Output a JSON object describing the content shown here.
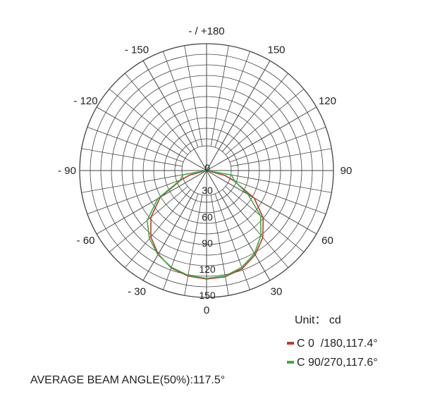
{
  "chart_data": {
    "type": "polar",
    "angle_labels": [
      {
        "text": "- / +180",
        "angle": 0
      },
      {
        "text": "150",
        "angle": 30
      },
      {
        "text": "120",
        "angle": 60
      },
      {
        "text": "90",
        "angle": 90
      },
      {
        "text": "60",
        "angle": 120
      },
      {
        "text": "30",
        "angle": 150
      },
      {
        "text": "0",
        "angle": 180
      },
      {
        "text": "- 30",
        "angle": 210
      },
      {
        "text": "- 60",
        "angle": 240
      },
      {
        "text": "- 90",
        "angle": 270
      },
      {
        "text": "- 120",
        "angle": 300
      },
      {
        "text": "- 150",
        "angle": 330
      }
    ],
    "radial_labels": [
      "0",
      "30",
      "60",
      "90",
      "120",
      "150"
    ],
    "unit_label": "Unit： cd",
    "series": [
      {
        "name": "C 0  /180,117.4°",
        "color": "#c0392b",
        "points": [
          {
            "angle": -75,
            "value": 27
          },
          {
            "angle": -70,
            "value": 40
          },
          {
            "angle": -60,
            "value": 78
          },
          {
            "angle": -50,
            "value": 105
          },
          {
            "angle": -40,
            "value": 124
          },
          {
            "angle": -30,
            "value": 138
          },
          {
            "angle": -20,
            "value": 148
          },
          {
            "angle": -10,
            "value": 153
          },
          {
            "angle": 0,
            "value": 154
          },
          {
            "angle": 10,
            "value": 152
          },
          {
            "angle": 20,
            "value": 147
          },
          {
            "angle": 30,
            "value": 137
          },
          {
            "angle": 40,
            "value": 123
          },
          {
            "angle": 50,
            "value": 103
          },
          {
            "angle": 60,
            "value": 76
          },
          {
            "angle": 70,
            "value": 38
          },
          {
            "angle": 75,
            "value": 25
          }
        ]
      },
      {
        "name": "C 90/270,117.6°",
        "color": "#33b044",
        "points": [
          {
            "angle": -80,
            "value": 36
          },
          {
            "angle": -70,
            "value": 42
          },
          {
            "angle": -60,
            "value": 68
          },
          {
            "angle": -50,
            "value": 100
          },
          {
            "angle": -40,
            "value": 120
          },
          {
            "angle": -30,
            "value": 136
          },
          {
            "angle": -20,
            "value": 146
          },
          {
            "angle": -10,
            "value": 152
          },
          {
            "angle": 0,
            "value": 153
          },
          {
            "angle": 10,
            "value": 151
          },
          {
            "angle": 20,
            "value": 146
          },
          {
            "angle": 30,
            "value": 138
          },
          {
            "angle": 40,
            "value": 126
          },
          {
            "angle": 50,
            "value": 110
          },
          {
            "angle": 60,
            "value": 80
          },
          {
            "angle": 70,
            "value": 40
          },
          {
            "angle": 80,
            "value": 34
          }
        ]
      }
    ],
    "r_max": 180,
    "grid": true,
    "legend_position": "bottom-right"
  },
  "footer": {
    "beam_angle_text": "AVERAGE BEAM ANGLE(50%):117.5°"
  }
}
